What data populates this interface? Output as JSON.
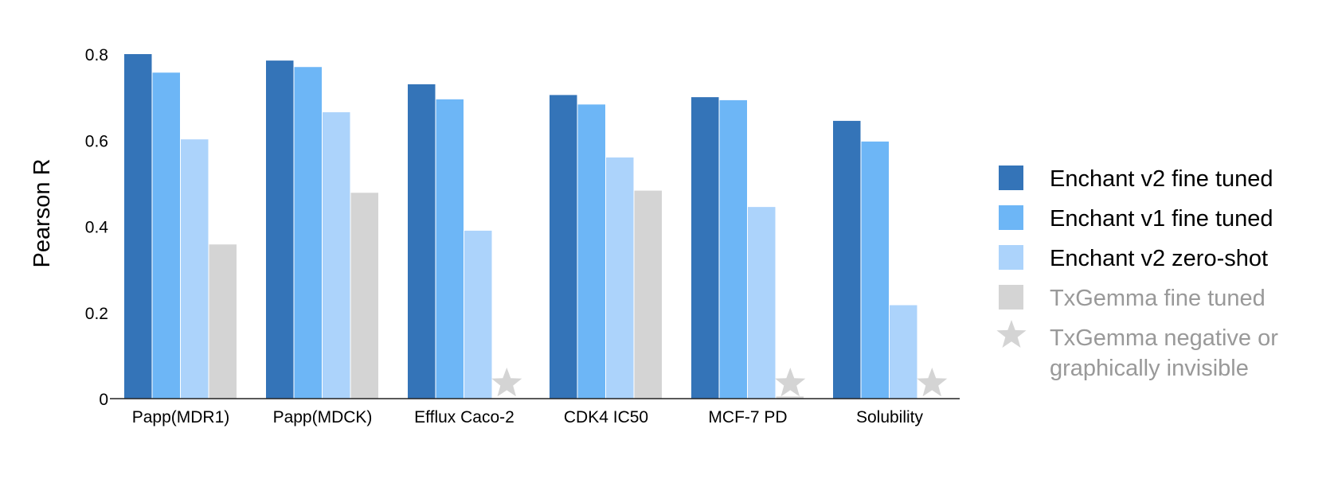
{
  "chart_data": {
    "type": "bar",
    "ylabel": "Pearson R",
    "xlabel": "",
    "ylim": [
      0,
      0.8
    ],
    "yticks": [
      {
        "value": 0,
        "label": "0"
      },
      {
        "value": 0.2,
        "label": "0.2"
      },
      {
        "value": 0.4,
        "label": "0.4"
      },
      {
        "value": 0.6,
        "label": "0.6"
      },
      {
        "value": 0.8,
        "label": "0.8"
      }
    ],
    "categories": [
      "Papp(MDR1)",
      "Papp(MDCK)",
      "Efflux Caco-2",
      "CDK4 IC50",
      "MCF-7 PD",
      "Solubility"
    ],
    "series": [
      {
        "name": "Enchant v2 fine tuned",
        "color": "#3474b8",
        "values": [
          0.8,
          0.785,
          0.73,
          0.705,
          0.7,
          0.645
        ]
      },
      {
        "name": "Enchant v1 fine tuned",
        "color": "#6db6f6",
        "values": [
          0.757,
          0.77,
          0.695,
          0.683,
          0.693,
          0.597
        ]
      },
      {
        "name": "Enchant v2 zero-shot",
        "color": "#acd3fb",
        "values": [
          0.602,
          0.665,
          0.39,
          0.56,
          0.445,
          0.217
        ]
      },
      {
        "name": "TxGemma fine tuned",
        "color": "#d4d4d4",
        "values": [
          0.358,
          0.478,
          null,
          0.483,
          0.005,
          null
        ]
      }
    ],
    "markers": {
      "name": "TxGemma negative or graphically invisible",
      "color": "#d4d4d4",
      "categories": [
        "Efflux Caco-2",
        "MCF-7 PD",
        "Solubility"
      ]
    },
    "grid": false,
    "legend_position": "right"
  },
  "legend": [
    {
      "label": "Enchant v2 fine tuned",
      "color": "#3474b8",
      "text_color": "#000000",
      "icon": "square"
    },
    {
      "label": "Enchant v1 fine tuned",
      "color": "#6db6f6",
      "text_color": "#000000",
      "icon": "square"
    },
    {
      "label": "Enchant v2 zero-shot",
      "color": "#acd3fb",
      "text_color": "#000000",
      "icon": "square"
    },
    {
      "label": "TxGemma fine tuned",
      "color": "#d4d4d4",
      "text_color": "#999999",
      "icon": "square"
    },
    {
      "label": "TxGemma negative or graphically invisible",
      "color": "#d4d4d4",
      "text_color": "#999999",
      "icon": "star-icon"
    }
  ]
}
